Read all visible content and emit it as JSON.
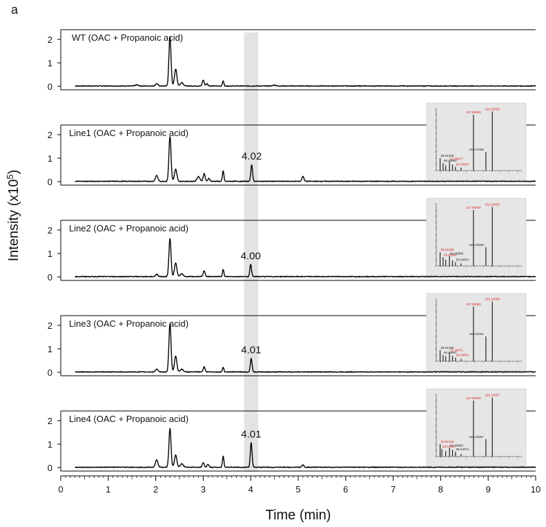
{
  "figure_letter": "a",
  "chart_data": {
    "type": "line",
    "xlabel": "Time (min)",
    "ylabel_prefix": "Intensity (x10",
    "ylabel_exp": "5",
    "ylabel_suffix": ")",
    "xlim": [
      0,
      10
    ],
    "ylim": [
      0,
      2.4
    ],
    "x_ticks": [
      "0",
      "1",
      "2",
      "3",
      "4",
      "5",
      "6",
      "7",
      "8",
      "9",
      "10"
    ],
    "y_ticks": [
      "0",
      "1",
      "2"
    ],
    "highlight_band": [
      3.86,
      4.16
    ],
    "panels": [
      {
        "label": "WT (OAC + Propanoic acid)",
        "peaks": [
          [
            1.6,
            0.05,
            0.03
          ],
          [
            2.02,
            0.1,
            0.025
          ],
          [
            2.3,
            2.1,
            0.022
          ],
          [
            2.42,
            0.72,
            0.025
          ],
          [
            2.55,
            0.15,
            0.03
          ],
          [
            3.0,
            0.25,
            0.02
          ],
          [
            3.08,
            0.1,
            0.02
          ],
          [
            3.42,
            0.22,
            0.015
          ],
          [
            4.5,
            0.04,
            0.03
          ]
        ],
        "peak_label": "",
        "peak_rt": null,
        "has_spectrum": false
      },
      {
        "label": "Line1 (OAC + Propanoic acid)",
        "peaks": [
          [
            2.02,
            0.25,
            0.025
          ],
          [
            2.3,
            1.92,
            0.022
          ],
          [
            2.42,
            0.52,
            0.025
          ],
          [
            2.9,
            0.2,
            0.03
          ],
          [
            3.02,
            0.33,
            0.02
          ],
          [
            3.12,
            0.12,
            0.02
          ],
          [
            3.42,
            0.45,
            0.015
          ],
          [
            4.02,
            0.7,
            0.018
          ],
          [
            5.1,
            0.22,
            0.02
          ]
        ],
        "peak_label": "4.02",
        "peak_rt": 4.02,
        "has_spectrum": true,
        "spectrum": {
          "labels": [
            "137.05983",
            "181.05003",
            "166.07666",
            "81.06977",
            "95.04857",
            "59.01308",
            "66.04892"
          ],
          "peaks": [
            [
              137,
              90,
              0
            ],
            [
              181,
              95,
              1
            ],
            [
              166,
              30,
              2
            ],
            [
              81,
              15,
              3
            ],
            [
              95,
              6,
              4
            ],
            [
              59,
              20,
              5
            ],
            [
              66,
              12,
              6
            ],
            [
              72,
              8,
              -1
            ],
            [
              88,
              10,
              -1
            ],
            [
              108,
              5,
              -1
            ]
          ]
        }
      },
      {
        "label": "Line2 (OAC + Propanoic acid)",
        "peaks": [
          [
            2.02,
            0.1,
            0.025
          ],
          [
            2.3,
            1.62,
            0.022
          ],
          [
            2.42,
            0.58,
            0.025
          ],
          [
            2.55,
            0.12,
            0.03
          ],
          [
            3.02,
            0.25,
            0.02
          ],
          [
            3.42,
            0.3,
            0.015
          ],
          [
            4.0,
            0.52,
            0.018
          ]
        ],
        "peak_label": "4.00",
        "peak_rt": 4.0,
        "has_spectrum": true,
        "spectrum": {
          "labels": [
            "137.05983",
            "181.06693",
            "166.02669",
            "59.01258",
            "66.04892",
            "81.06988",
            "95.04857"
          ],
          "peaks": [
            [
              137,
              90,
              0
            ],
            [
              181,
              95,
              1
            ],
            [
              166,
              30,
              2
            ],
            [
              59,
              22,
              3
            ],
            [
              66,
              14,
              4
            ],
            [
              81,
              16,
              5
            ],
            [
              95,
              6,
              6
            ],
            [
              72,
              10,
              -1
            ],
            [
              88,
              9,
              -1
            ],
            [
              108,
              4,
              -1
            ]
          ]
        }
      },
      {
        "label": "Line3 (OAC + Propanoic acid)",
        "peaks": [
          [
            2.02,
            0.12,
            0.025
          ],
          [
            2.3,
            2.05,
            0.022
          ],
          [
            2.42,
            0.68,
            0.025
          ],
          [
            2.55,
            0.12,
            0.03
          ],
          [
            3.02,
            0.22,
            0.02
          ],
          [
            3.42,
            0.2,
            0.015
          ],
          [
            4.01,
            0.58,
            0.018
          ]
        ],
        "peak_label": "4.01",
        "peak_rt": 4.01,
        "has_spectrum": true,
        "spectrum": {
          "labels": [
            "137.05983",
            "181.05000",
            "166.02301",
            "81.06971",
            "95.04851",
            "59.01258",
            "66.04897"
          ],
          "peaks": [
            [
              137,
              88,
              0
            ],
            [
              181,
              96,
              1
            ],
            [
              166,
              40,
              2
            ],
            [
              81,
              14,
              3
            ],
            [
              95,
              6,
              4
            ],
            [
              59,
              18,
              5
            ],
            [
              66,
              10,
              6
            ],
            [
              72,
              8,
              -1
            ],
            [
              88,
              9,
              -1
            ],
            [
              108,
              4,
              -1
            ]
          ]
        }
      },
      {
        "label": "Line4 (OAC + Propanoic acid)",
        "peaks": [
          [
            2.02,
            0.32,
            0.025
          ],
          [
            2.3,
            1.65,
            0.022
          ],
          [
            2.42,
            0.52,
            0.025
          ],
          [
            2.55,
            0.15,
            0.03
          ],
          [
            3.0,
            0.2,
            0.02
          ],
          [
            3.1,
            0.12,
            0.02
          ],
          [
            3.42,
            0.48,
            0.015
          ],
          [
            4.01,
            1.05,
            0.018
          ],
          [
            5.1,
            0.1,
            0.02
          ]
        ],
        "peak_label": "4.01",
        "peak_rt": 4.01,
        "has_spectrum": true,
        "spectrum": {
          "labels": [
            "137.05983",
            "181.04987",
            "166.02667",
            "59.01318",
            "63.04907",
            "81.06993",
            "95.04971"
          ],
          "peaks": [
            [
              137,
              90,
              0
            ],
            [
              181,
              95,
              1
            ],
            [
              166,
              28,
              2
            ],
            [
              59,
              20,
              3
            ],
            [
              63,
              12,
              4
            ],
            [
              81,
              14,
              5
            ],
            [
              95,
              8,
              6
            ],
            [
              72,
              9,
              -1
            ],
            [
              88,
              11,
              -1
            ],
            [
              108,
              4,
              -1
            ]
          ]
        }
      }
    ]
  }
}
